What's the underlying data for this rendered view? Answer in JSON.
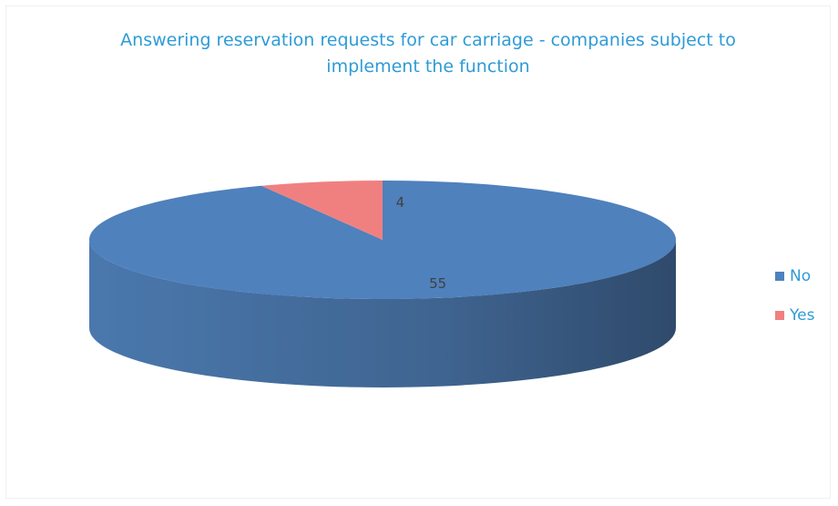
{
  "chart_data": {
    "type": "pie3d",
    "title": "Answering reservation requests for car carriage - companies subject to implement the function",
    "categories": [
      "No",
      "Yes"
    ],
    "values": [
      55,
      4
    ],
    "colors": [
      "#4f81bd",
      "#f08080"
    ],
    "legend": "right"
  }
}
